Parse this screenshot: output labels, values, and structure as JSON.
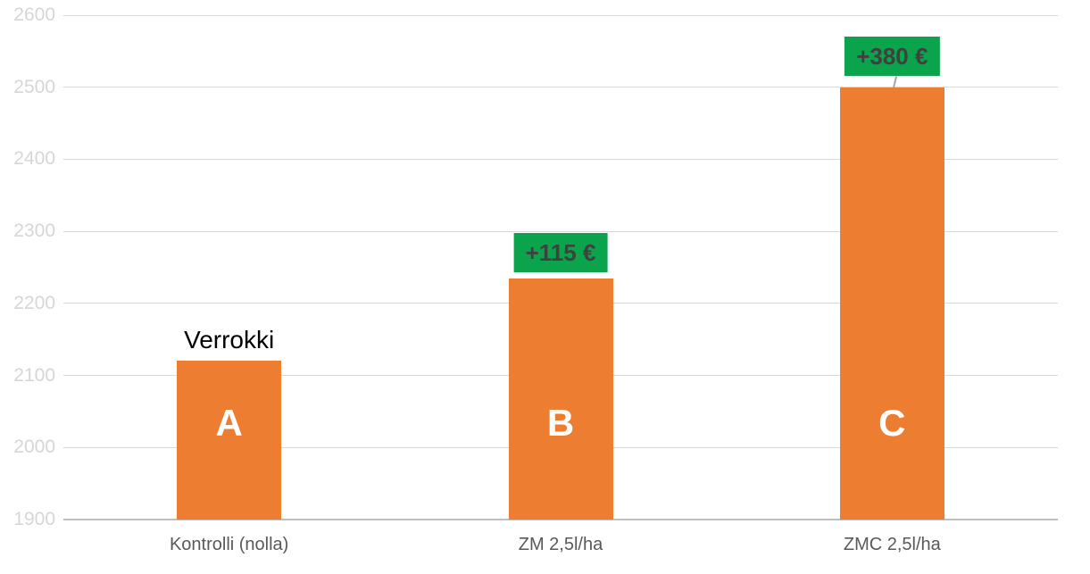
{
  "chart_data": {
    "type": "bar",
    "title": "",
    "xlabel": "",
    "ylabel": "",
    "categories": [
      "Kontrolli (nolla)",
      "ZM 2,5l/ha",
      "ZMC 2,5l/ha"
    ],
    "values": [
      2120,
      2235,
      2500
    ],
    "bar_letters": [
      "A",
      "B",
      "C"
    ],
    "ylim": [
      1900,
      2600
    ],
    "ytick_step": 100,
    "yticks": [
      1900,
      2000,
      2100,
      2200,
      2300,
      2400,
      2500,
      2600
    ],
    "grid": true,
    "legend": false,
    "annotations": [
      {
        "bar_index": 0,
        "text": "Verrokki",
        "style": "plain",
        "callout": false
      },
      {
        "bar_index": 1,
        "text": "+115 €",
        "style": "green-box",
        "callout": false
      },
      {
        "bar_index": 2,
        "text": "+380 €",
        "style": "green-box",
        "callout": true
      }
    ]
  },
  "colors": {
    "background": "#FFFFFF",
    "bar_fill": "#ED7D31",
    "bar_letter": "#FFFFFF",
    "annotation_box": "#0BA44C",
    "annotation_box_text": "#404040",
    "plain_annotation_text": "#000000",
    "gridline": "#D9D9D9",
    "baseline": "#BFBFBF",
    "ytick_label": "#D6D6D6",
    "xtick_label": "#595959",
    "callout_line": "#A6A6A6"
  }
}
